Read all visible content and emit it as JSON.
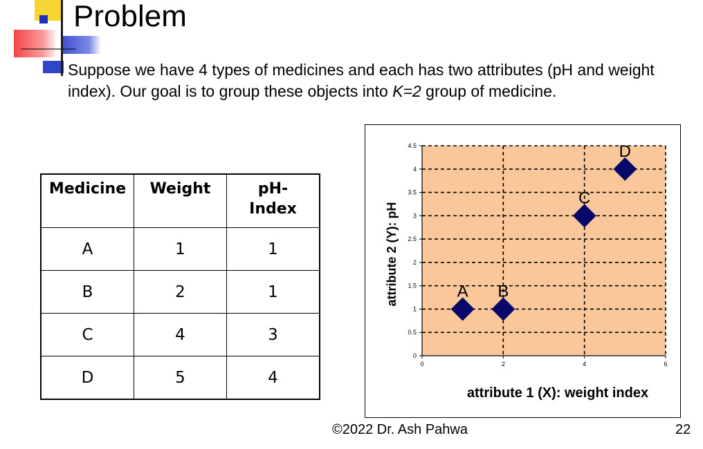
{
  "slide": {
    "title": "Problem",
    "body_before_k": "Suppose we have 4 types of medicines and each has two attributes (pH and weight index). Our goal is to group these objects into ",
    "body_k": "K=2",
    "body_after_k": " group of medicine.",
    "footer": "©2022 Dr. Ash Pahwa",
    "page_number": "22"
  },
  "table": {
    "headers": [
      "Medicine",
      "Weight",
      "pH-Index"
    ],
    "rows": [
      [
        "A",
        "1",
        "1"
      ],
      [
        "B",
        "2",
        "1"
      ],
      [
        "C",
        "4",
        "3"
      ],
      [
        "D",
        "5",
        "4"
      ]
    ]
  },
  "colors": {
    "plot_bg": "#f9c79a",
    "marker": "#08086b",
    "logo_yellow": "#f6d431",
    "logo_blue": "#3045c8"
  },
  "chart_data": {
    "type": "scatter",
    "title": "",
    "xlabel": "attribute 1 (X): weight index",
    "ylabel": "attribute 2 (Y): pH",
    "xlim": [
      0,
      6
    ],
    "ylim": [
      0,
      4.5
    ],
    "x_ticks": [
      0,
      2,
      4,
      6
    ],
    "y_ticks": [
      0,
      0.5,
      1,
      1.5,
      2,
      2.5,
      3,
      3.5,
      4,
      4.5
    ],
    "x_tick_labels": [
      "0",
      "2",
      "4",
      "6"
    ],
    "y_tick_labels": [
      "0",
      "0.5",
      "1",
      "1.5",
      "2",
      "2.5",
      "3",
      "3.5",
      "4",
      "4.5"
    ],
    "grid": true,
    "legend": "none",
    "points": [
      {
        "label": "A",
        "x": 1,
        "y": 1
      },
      {
        "label": "B",
        "x": 2,
        "y": 1
      },
      {
        "label": "C",
        "x": 4,
        "y": 3
      },
      {
        "label": "D",
        "x": 5,
        "y": 4
      }
    ]
  }
}
